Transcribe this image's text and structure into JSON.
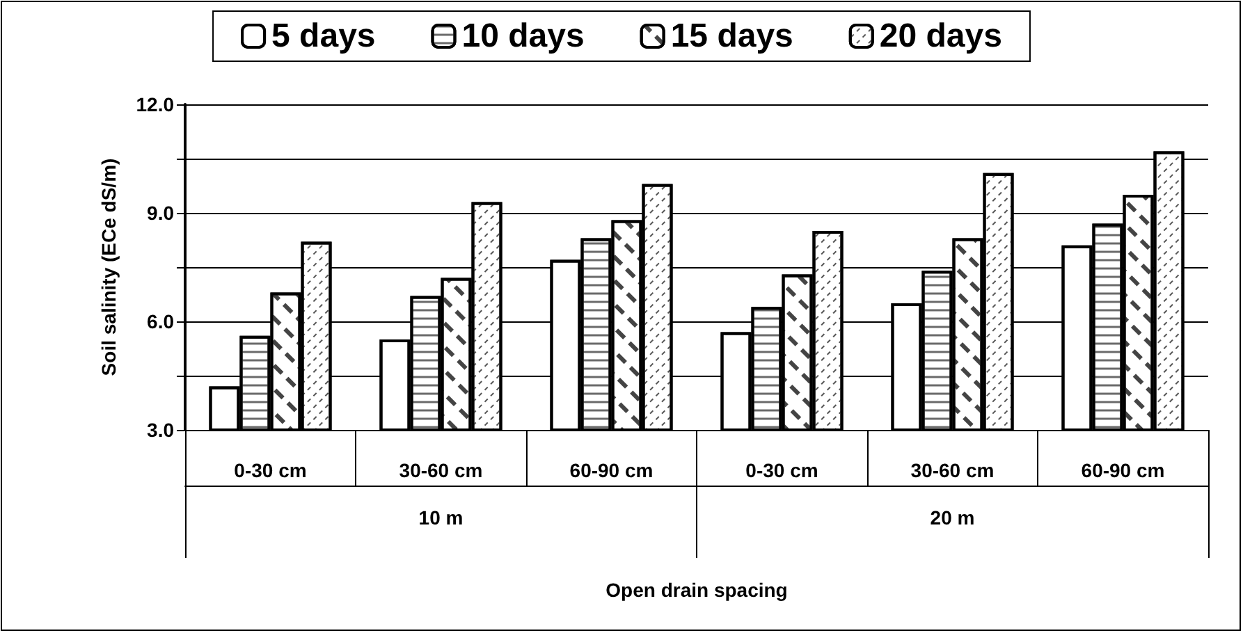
{
  "chart_data": {
    "type": "bar",
    "categories": [
      "0-30 cm",
      "30-60 cm",
      "60-90 cm",
      "0-30 cm",
      "30-60 cm",
      "60-90 cm"
    ],
    "annotations": [
      "10 m",
      "20 m"
    ],
    "xlabel": "Open drain spacing",
    "ylabel": "Soil salinity (ECe dS/m)",
    "series": [
      {
        "name": "5 days",
        "color": "#ffffff",
        "values": [
          4.2,
          5.5,
          7.7,
          5.7,
          6.5,
          8.1
        ]
      },
      {
        "name": "10 days",
        "color": "#ffffff",
        "values": [
          5.6,
          6.7,
          8.3,
          6.4,
          7.4,
          8.7
        ]
      },
      {
        "name": "15 days",
        "color": "#ffffff",
        "values": [
          6.8,
          7.2,
          8.8,
          7.3,
          8.3,
          9.5
        ]
      },
      {
        "name": "20 days",
        "color": "#ffffff",
        "values": [
          8.2,
          9.3,
          9.8,
          8.5,
          10.1,
          10.7
        ]
      }
    ],
    "ylim": [
      3,
      12
    ],
    "yticks": [
      {
        "value": 3,
        "label": "3.0"
      },
      {
        "value": 4.5,
        "label": null
      },
      {
        "value": 6,
        "label": "6.0"
      },
      {
        "value": 7.5,
        "label": null
      },
      {
        "value": 9,
        "label": "9.0"
      },
      {
        "value": 10.5,
        "label": null
      },
      {
        "value": 12,
        "label": "12.0"
      }
    ],
    "grid": "y",
    "legend": "top"
  }
}
